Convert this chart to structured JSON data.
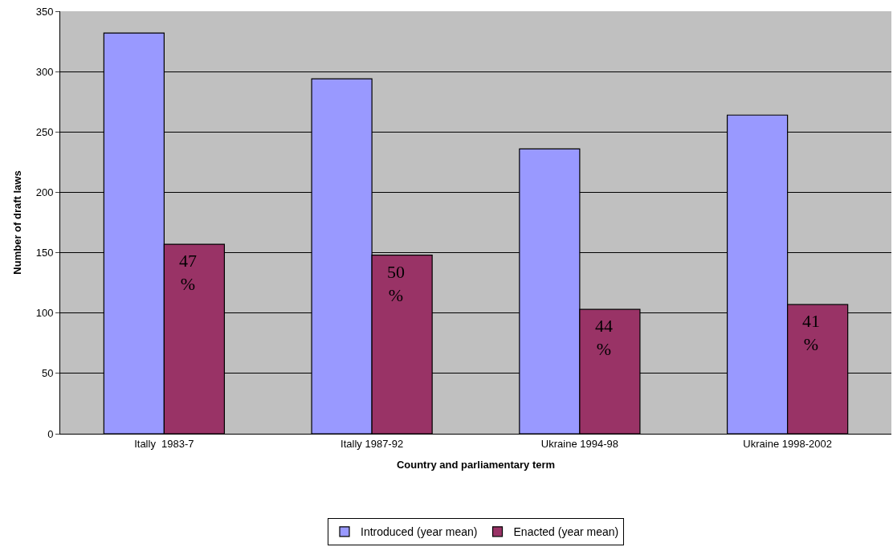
{
  "chart_data": {
    "type": "bar",
    "xlabel": "Country and parliamentary term",
    "ylabel": "Number of draft laws",
    "categories": [
      "Itally  1983-7",
      "Itally 1987-92",
      "Ukraine 1994-98",
      "Ukraine 1998-2002"
    ],
    "series": [
      {
        "name": "Introduced (year mean)",
        "color": "#9999ff",
        "values": [
          332,
          294,
          236,
          264
        ]
      },
      {
        "name": "Enacted (year mean)",
        "color": "#993366",
        "values": [
          157,
          148,
          103,
          107
        ]
      }
    ],
    "annotations": [
      {
        "text": "47 %",
        "x": "Itally  1983-7",
        "y": 157
      },
      {
        "text": "50 %",
        "x": "Itally 1987-92",
        "y": 148
      },
      {
        "text": "44 %",
        "x": "Ukraine 1994-98",
        "y": 103
      },
      {
        "text": "41 %",
        "x": "Ukraine 1998-2002",
        "y": 107
      }
    ],
    "ylim": [
      0,
      350
    ],
    "yticks": [
      0,
      50,
      100,
      150,
      200,
      250,
      300,
      350
    ],
    "grid": "y",
    "legend": "bottom"
  }
}
